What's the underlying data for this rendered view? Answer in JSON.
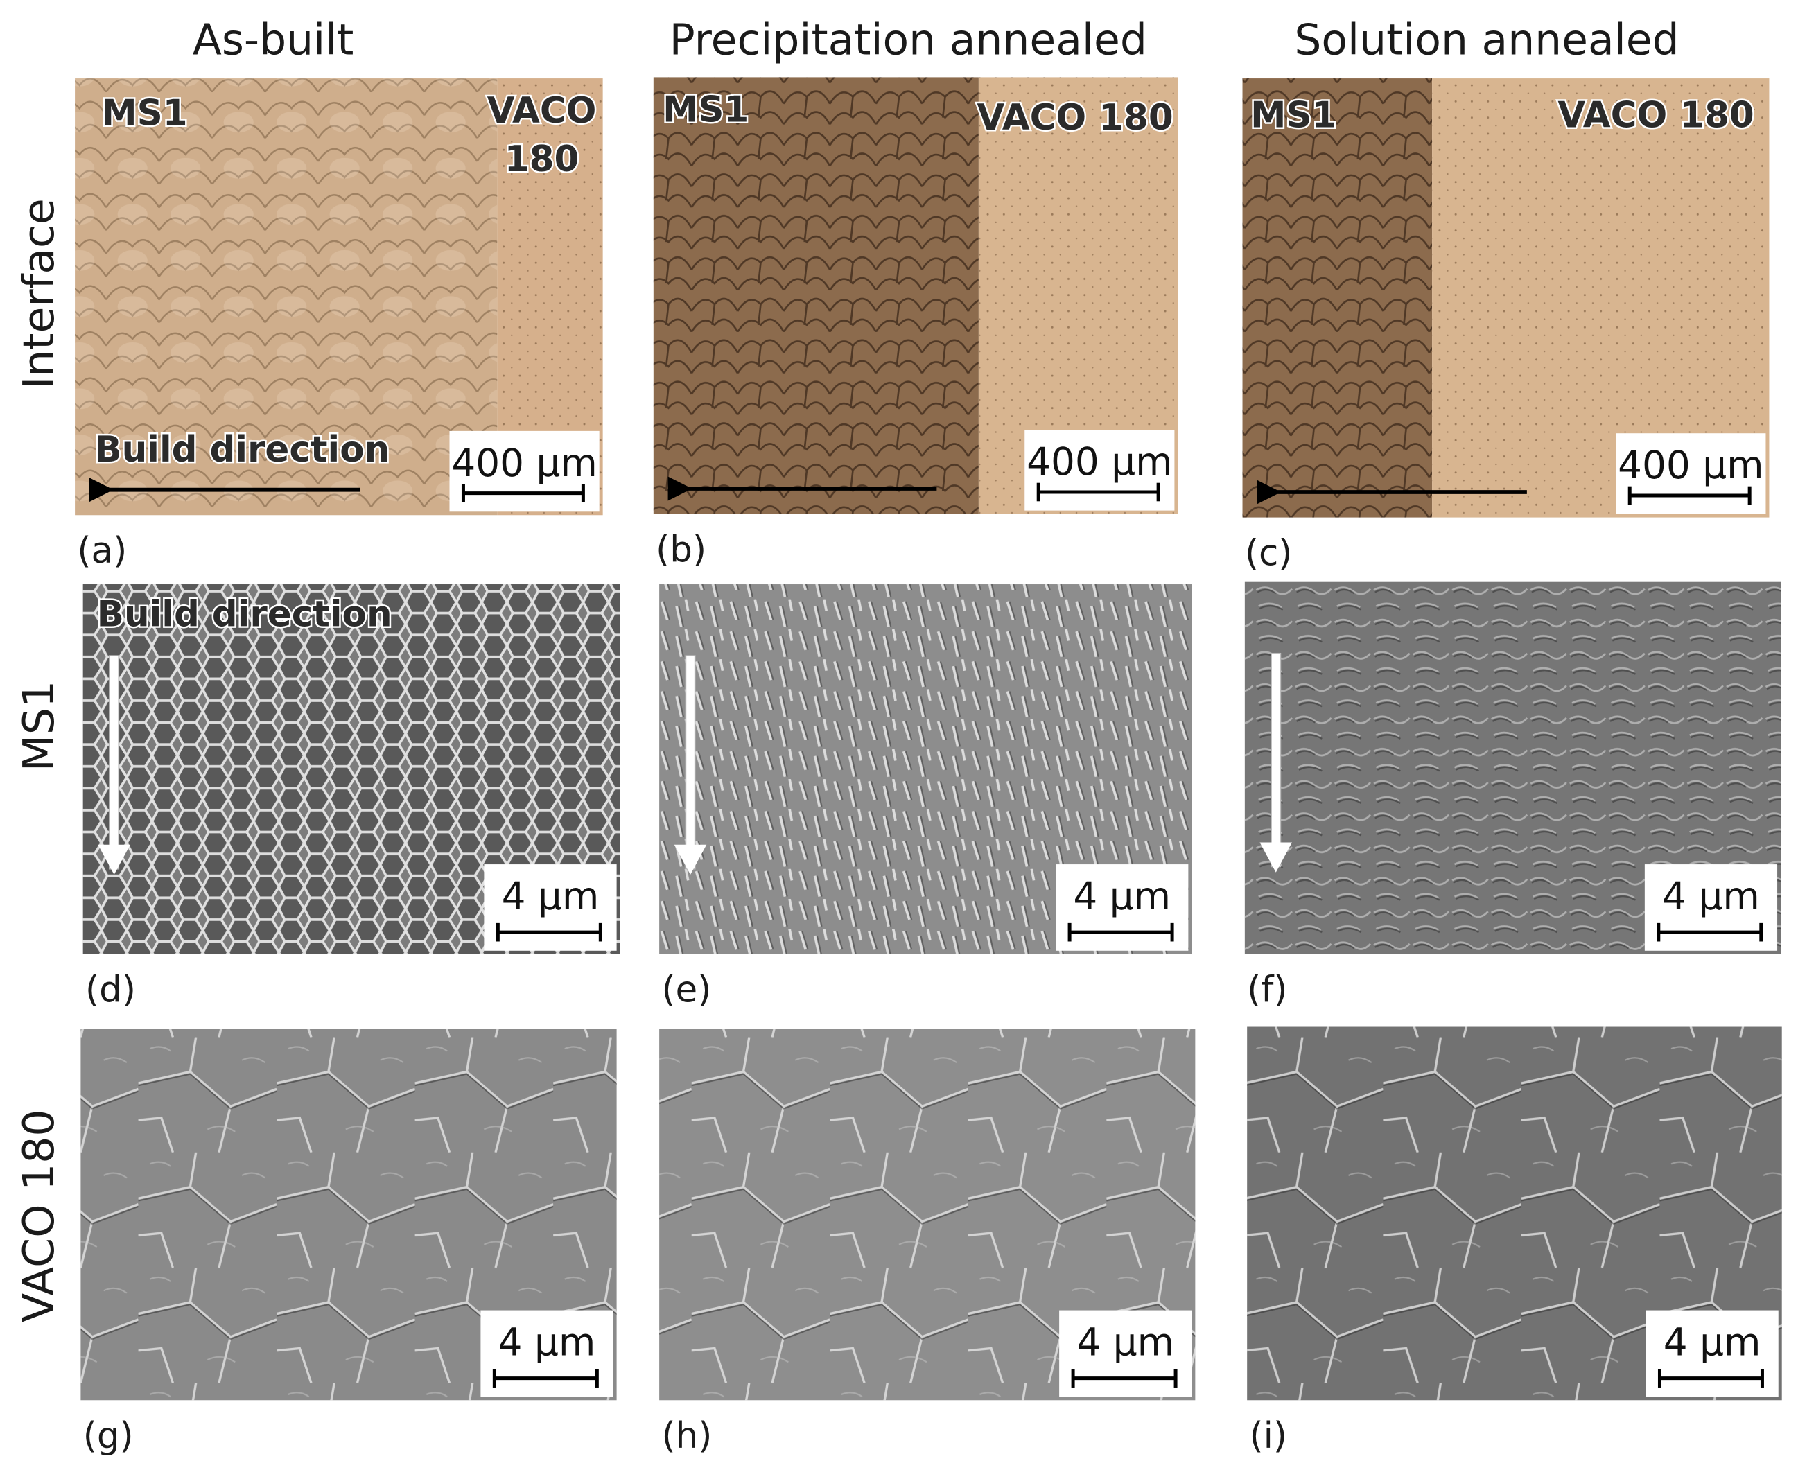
{
  "columns": [
    "As-built",
    "Precipitation annealed",
    "Solution annealed"
  ],
  "rows": [
    "Interface",
    "MS1",
    "VACO 180"
  ],
  "panels": [
    {
      "label": "(a)",
      "scale_bar": "400 µm",
      "overlays": [
        "MS1",
        "VACO 180",
        "Build direction"
      ]
    },
    {
      "label": "(b)",
      "scale_bar": "400 µm",
      "overlays": [
        "MS1",
        "VACO 180"
      ]
    },
    {
      "label": "(c)",
      "scale_bar": "400 µm",
      "overlays": [
        "MS1",
        "VACO 180"
      ]
    },
    {
      "label": "(d)",
      "scale_bar": "4 µm",
      "overlays": [
        "Build direction"
      ]
    },
    {
      "label": "(e)",
      "scale_bar": "4 µm",
      "overlays": []
    },
    {
      "label": "(f)",
      "scale_bar": "4 µm",
      "overlays": []
    },
    {
      "label": "(g)",
      "scale_bar": "4 µm",
      "overlays": []
    },
    {
      "label": "(h)",
      "scale_bar": "4 µm",
      "overlays": []
    },
    {
      "label": "(i)",
      "scale_bar": "4 µm",
      "overlays": []
    }
  ]
}
